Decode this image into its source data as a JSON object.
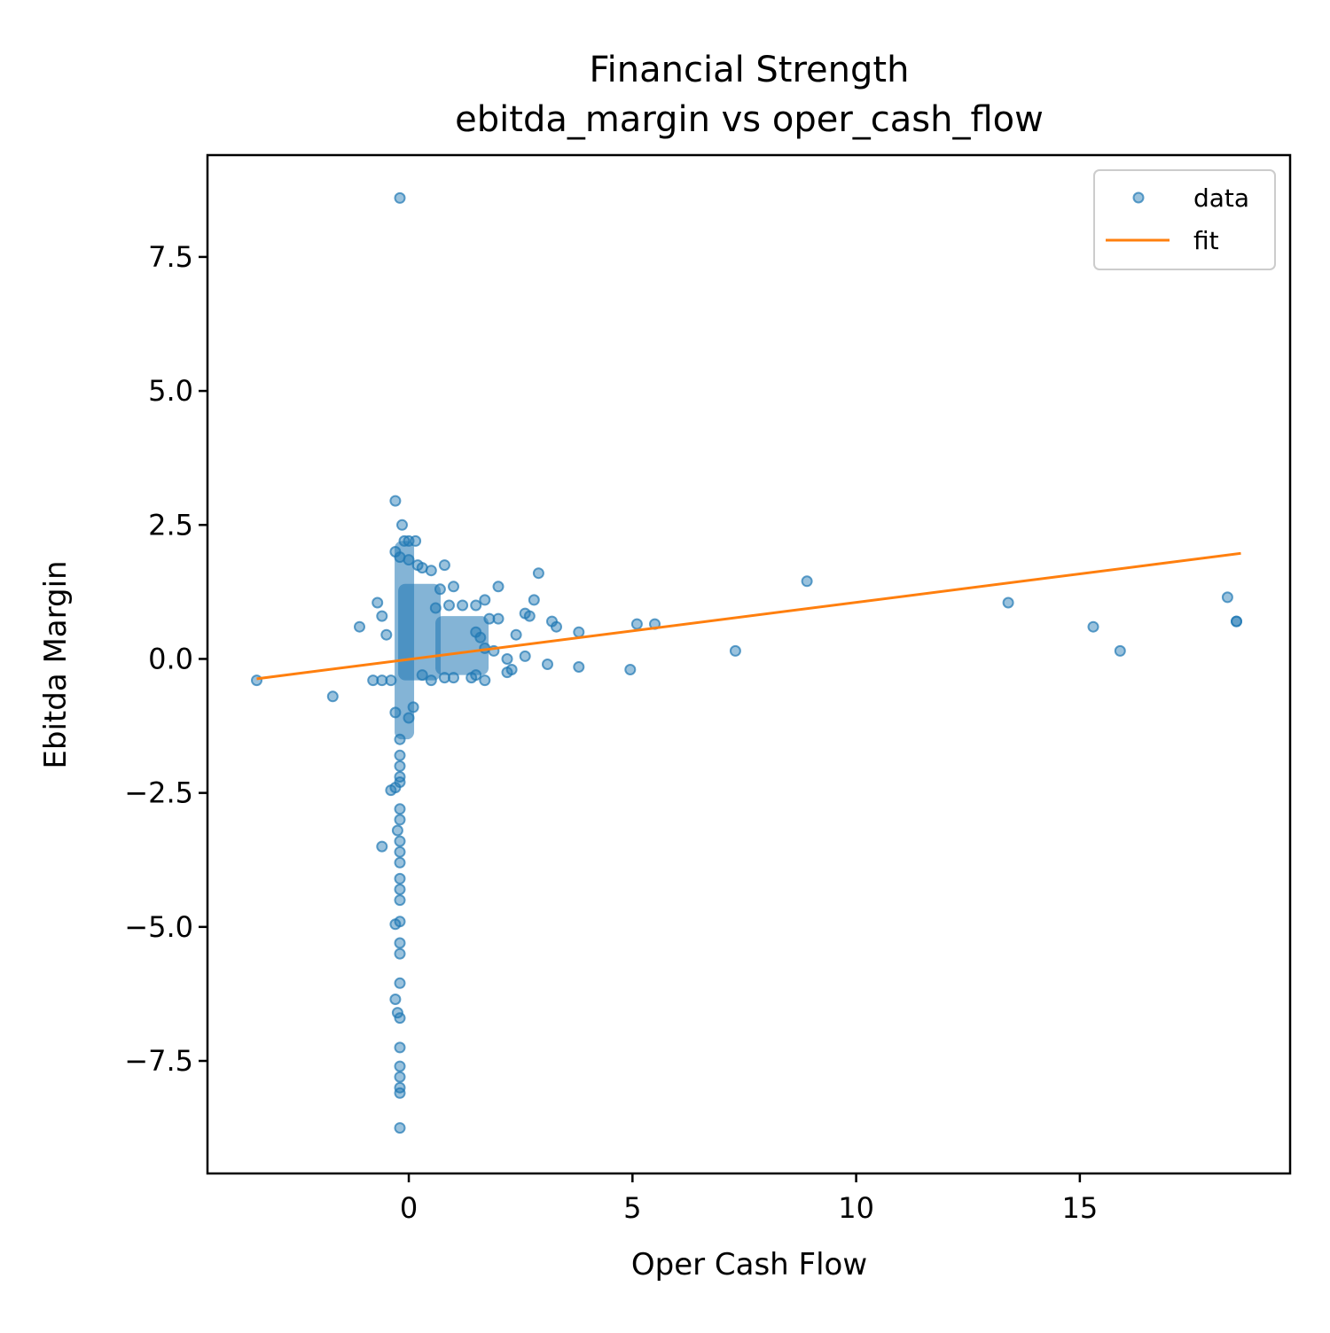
{
  "chart_data": {
    "type": "scatter",
    "title": "Financial Strength",
    "subtitle": "ebitda_margin vs oper_cash_flow",
    "xlabel": "Oper Cash Flow",
    "ylabel": "Ebitda Margin",
    "xlim": [
      -4.5,
      19.7
    ],
    "ylim": [
      -9.6,
      9.4
    ],
    "xticks": [
      0,
      5,
      10,
      15
    ],
    "xtick_labels": [
      "0",
      "5",
      "10",
      "15"
    ],
    "yticks": [
      -7.5,
      -5.0,
      -2.5,
      0.0,
      2.5,
      5.0,
      7.5
    ],
    "ytick_labels": [
      "−7.5",
      "−5.0",
      "−2.5",
      "0.0",
      "2.5",
      "5.0",
      "7.5"
    ],
    "grid": false,
    "legend_position": "top-right",
    "colors": {
      "data": "#1f77b4",
      "fit": "#ff7f0e"
    },
    "series": [
      {
        "name": "data",
        "kind": "scatter",
        "points": [
          [
            -0.2,
            8.6
          ],
          [
            -0.3,
            2.95
          ],
          [
            -0.15,
            2.5
          ],
          [
            -0.1,
            2.2
          ],
          [
            0.0,
            2.2
          ],
          [
            0.15,
            2.2
          ],
          [
            -0.3,
            2.0
          ],
          [
            -0.2,
            1.9
          ],
          [
            0.0,
            1.85
          ],
          [
            0.2,
            1.75
          ],
          [
            0.3,
            1.7
          ],
          [
            0.5,
            1.65
          ],
          [
            0.8,
            1.75
          ],
          [
            2.9,
            1.6
          ],
          [
            1.0,
            1.35
          ],
          [
            2.0,
            1.35
          ],
          [
            0.7,
            1.3
          ],
          [
            -0.7,
            1.05
          ],
          [
            1.7,
            1.1
          ],
          [
            2.8,
            1.1
          ],
          [
            1.2,
            1.0
          ],
          [
            1.5,
            1.0
          ],
          [
            0.9,
            1.0
          ],
          [
            0.6,
            0.95
          ],
          [
            1.8,
            0.75
          ],
          [
            2.0,
            0.75
          ],
          [
            2.6,
            0.85
          ],
          [
            2.7,
            0.8
          ],
          [
            3.2,
            0.7
          ],
          [
            3.3,
            0.6
          ],
          [
            -0.6,
            0.8
          ],
          [
            -1.1,
            0.6
          ],
          [
            -0.5,
            0.45
          ],
          [
            1.5,
            0.5
          ],
          [
            1.6,
            0.4
          ],
          [
            2.4,
            0.45
          ],
          [
            3.8,
            0.5
          ],
          [
            5.1,
            0.65
          ],
          [
            5.5,
            0.65
          ],
          [
            8.9,
            1.45
          ],
          [
            7.3,
            0.15
          ],
          [
            13.4,
            1.05
          ],
          [
            15.3,
            0.6
          ],
          [
            15.9,
            0.15
          ],
          [
            18.3,
            1.15
          ],
          [
            18.5,
            0.7
          ],
          [
            18.5,
            0.7
          ],
          [
            1.7,
            0.2
          ],
          [
            1.9,
            0.15
          ],
          [
            2.2,
            0.0
          ],
          [
            2.6,
            0.05
          ],
          [
            3.1,
            -0.1
          ],
          [
            3.8,
            -0.15
          ],
          [
            4.95,
            -0.2
          ],
          [
            2.3,
            -0.2
          ],
          [
            2.2,
            -0.25
          ],
          [
            1.5,
            -0.3
          ],
          [
            1.4,
            -0.35
          ],
          [
            1.7,
            -0.4
          ],
          [
            1.0,
            -0.35
          ],
          [
            0.8,
            -0.35
          ],
          [
            0.5,
            -0.4
          ],
          [
            0.3,
            -0.3
          ],
          [
            -3.4,
            -0.4
          ],
          [
            -1.7,
            -0.7
          ],
          [
            -0.8,
            -0.4
          ],
          [
            -0.6,
            -0.4
          ],
          [
            -0.4,
            -0.4
          ],
          [
            0.1,
            -0.9
          ],
          [
            0.0,
            -1.1
          ],
          [
            -0.3,
            -1.0
          ],
          [
            -0.2,
            -1.5
          ],
          [
            -0.2,
            -1.8
          ],
          [
            -0.2,
            -2.0
          ],
          [
            -0.2,
            -2.2
          ],
          [
            -0.4,
            -2.45
          ],
          [
            -0.3,
            -2.4
          ],
          [
            -0.2,
            -2.3
          ],
          [
            -0.2,
            -2.8
          ],
          [
            -0.2,
            -3.0
          ],
          [
            -0.25,
            -3.2
          ],
          [
            -0.2,
            -3.4
          ],
          [
            -0.2,
            -3.6
          ],
          [
            -0.6,
            -3.5
          ],
          [
            -0.2,
            -3.8
          ],
          [
            -0.2,
            -4.1
          ],
          [
            -0.2,
            -4.3
          ],
          [
            -0.2,
            -4.5
          ],
          [
            -0.3,
            -4.95
          ],
          [
            -0.2,
            -4.9
          ],
          [
            -0.2,
            -5.3
          ],
          [
            -0.2,
            -5.5
          ],
          [
            -0.2,
            -6.05
          ],
          [
            -0.3,
            -6.35
          ],
          [
            -0.25,
            -6.6
          ],
          [
            -0.2,
            -6.7
          ],
          [
            -0.2,
            -7.25
          ],
          [
            -0.2,
            -7.6
          ],
          [
            -0.2,
            -7.8
          ],
          [
            -0.2,
            -8.0
          ],
          [
            -0.2,
            -8.1
          ],
          [
            -0.2,
            -8.75
          ]
        ]
      },
      {
        "name": "fit",
        "kind": "line",
        "points": [
          [
            -3.4,
            -0.37
          ],
          [
            18.6,
            1.97
          ]
        ]
      }
    ]
  }
}
